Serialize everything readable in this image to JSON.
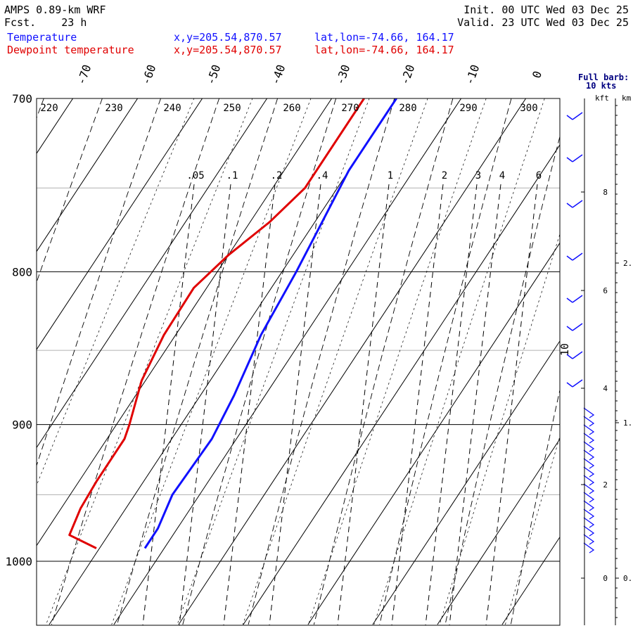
{
  "header": {
    "model": "AMPS 0.89-km WRF",
    "fcst": "Fcst.    23 h",
    "init": "Init. 00 UTC Wed 03 Dec 25",
    "valid": "Valid. 23 UTC Wed 03 Dec 25",
    "series": [
      {
        "name": "Temperature",
        "xy": "x,y=205.54,870.57",
        "latlon": "lat,lon=-74.66, 164.17"
      },
      {
        "name": "Dewpoint temperature",
        "xy": "x,y=205.54,870.57",
        "latlon": "lat,lon=-74.66, 164.17"
      }
    ],
    "barb_note": [
      "Full barb:",
      "10 kts"
    ],
    "height_units": [
      "kft",
      "km"
    ]
  },
  "colors": {
    "temperature": "#1010ff",
    "dewpoint": "#e00000",
    "grid": "#000000",
    "minor_grid": "#b0b0b0"
  },
  "chart_data": {
    "type": "line",
    "pressure_ticks": [
      "700",
      "800",
      "900",
      "1000"
    ],
    "pressure_range": [
      1050,
      700
    ],
    "temperature_ticks": [
      "-70",
      "-60",
      "-50",
      "-40",
      "-30",
      "-20",
      "-10",
      "0"
    ],
    "dry_adiabat_labels": [
      "220",
      "230",
      "240",
      "250",
      "260",
      "270",
      "280",
      "290",
      "300"
    ],
    "mixing_ratio_labels": [
      ".05",
      ".1",
      ".2",
      ".4",
      "1",
      "2",
      "3",
      "4",
      "6"
    ],
    "kft_ticks": [
      "8",
      "6",
      "4",
      "2",
      "0"
    ],
    "km_ticks": [
      "2.",
      "1.",
      "0."
    ],
    "annotation": "10",
    "series": [
      {
        "name": "Temperature",
        "pressure": [
          700,
          740,
          780,
          800,
          840,
          880,
          910,
          950,
          975,
          990
        ],
        "temperature": [
          -20,
          -20,
          -18.5,
          -17.8,
          -16.8,
          -14.8,
          -13.8,
          -14.2,
          -13.0,
          -13.0
        ]
      },
      {
        "name": "Dewpoint temperature",
        "pressure": [
          700,
          750,
          770,
          790,
          810,
          840,
          870,
          900,
          910,
          940,
          960,
          980,
          990
        ],
        "temperature": [
          -25,
          -25,
          -27,
          -30,
          -32,
          -31.8,
          -30.6,
          -28,
          -27.3,
          -27.3,
          -27,
          -26,
          -20.5
        ]
      }
    ]
  }
}
